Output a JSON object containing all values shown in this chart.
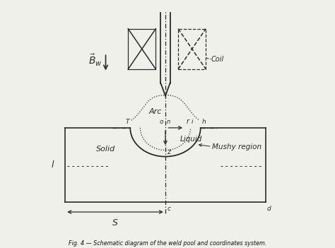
{
  "title": "Fig. 4 — Schematic diagram of the weld pool and coordinates system.",
  "bg_color": "#f0f0eb",
  "line_color": "#2a2a2a",
  "figsize": [
    4.74,
    3.51
  ],
  "dpi": 100,
  "labels": {
    "Bw": "$\\vec{B}_w$",
    "Arc": "Arc",
    "Liquid": "Liquid",
    "Solid": "Solid",
    "Mushy_region": "Mushy region",
    "Coil": "Coil",
    "S": "S",
    "L": "l",
    "r": "r",
    "z": "z",
    "o": "o",
    "c": "c",
    "d": "d",
    "T": "T",
    "h": "h",
    "i": "i"
  }
}
